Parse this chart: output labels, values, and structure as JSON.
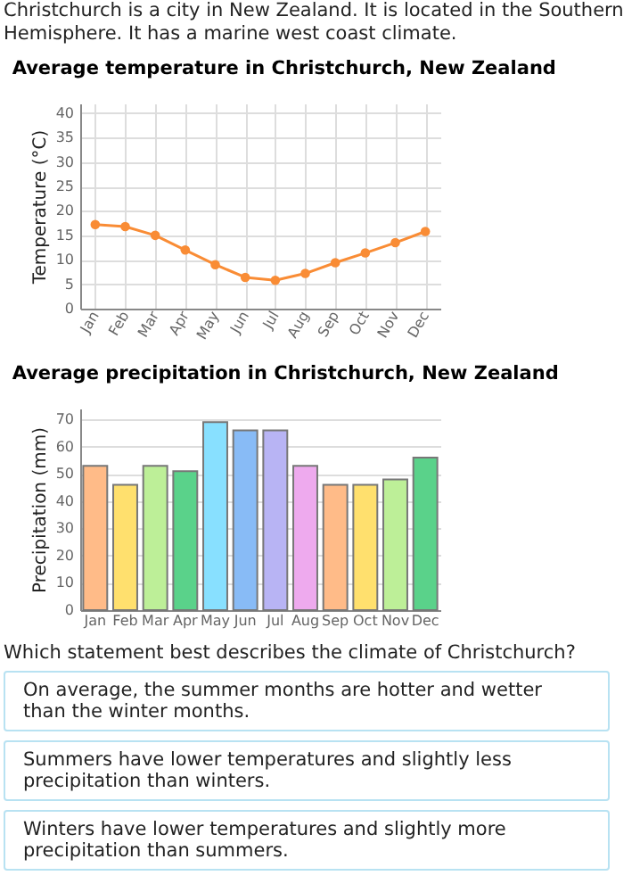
{
  "chart_data": [
    {
      "type": "line",
      "title": "Average temperature in Christchurch, New Zealand",
      "ylabel": "Temperature (°C)",
      "annotations": [
        "Christchurch is a city in New Zealand. It is located in the Southern Hemisphere. It has a marine west coast climate."
      ],
      "categories": [
        "Jan",
        "Feb",
        "Mar",
        "Apr",
        "May",
        "Jun",
        "Jul",
        "Aug",
        "Sep",
        "Oct",
        "Nov",
        "Dec"
      ],
      "series": [
        {
          "color": "#f98c35",
          "values": [
            17.2,
            16.8,
            15,
            12,
            9,
            6.4,
            5.8,
            7.2,
            9.4,
            11.4,
            13.5,
            15.8
          ]
        }
      ],
      "ylim": [
        0,
        42
      ],
      "yticks": [
        0,
        5,
        10,
        15,
        20,
        25,
        30,
        35,
        40
      ],
      "grid": true,
      "marker": "circle"
    },
    {
      "type": "bar",
      "title": "Average precipitation in Christchurch, New Zealand",
      "ylabel": "Precipitation (mm)",
      "annotations": [
        "Which statement best describes the climate of Christchurch?",
        "On average, the summer months are hotter and wetter than the winter months.",
        "Summers have lower temperatures and slightly less precipitation than winters.",
        "Winters have lower temperatures and slightly more precipitation than summers."
      ],
      "categories": [
        "Jan",
        "Feb",
        "Mar",
        "Apr",
        "May",
        "Jun",
        "Jul",
        "Aug",
        "Sep",
        "Oct",
        "Nov",
        "Dec"
      ],
      "values": [
        53,
        46,
        53,
        51,
        69,
        66,
        66,
        53,
        46,
        46,
        48,
        56
      ],
      "colors": [
        "#ffbb88",
        "#ffe06e",
        "#bdef98",
        "#5ad28a",
        "#88e0ff",
        "#88bbf6",
        "#b8b4f4",
        "#eeaaee",
        "#ffbb88",
        "#ffe06e",
        "#bdef98",
        "#5ad28a"
      ],
      "ylim": [
        0,
        74
      ],
      "yticks": [
        0,
        10,
        20,
        30,
        40,
        50,
        60,
        70
      ],
      "grid": "y"
    }
  ]
}
